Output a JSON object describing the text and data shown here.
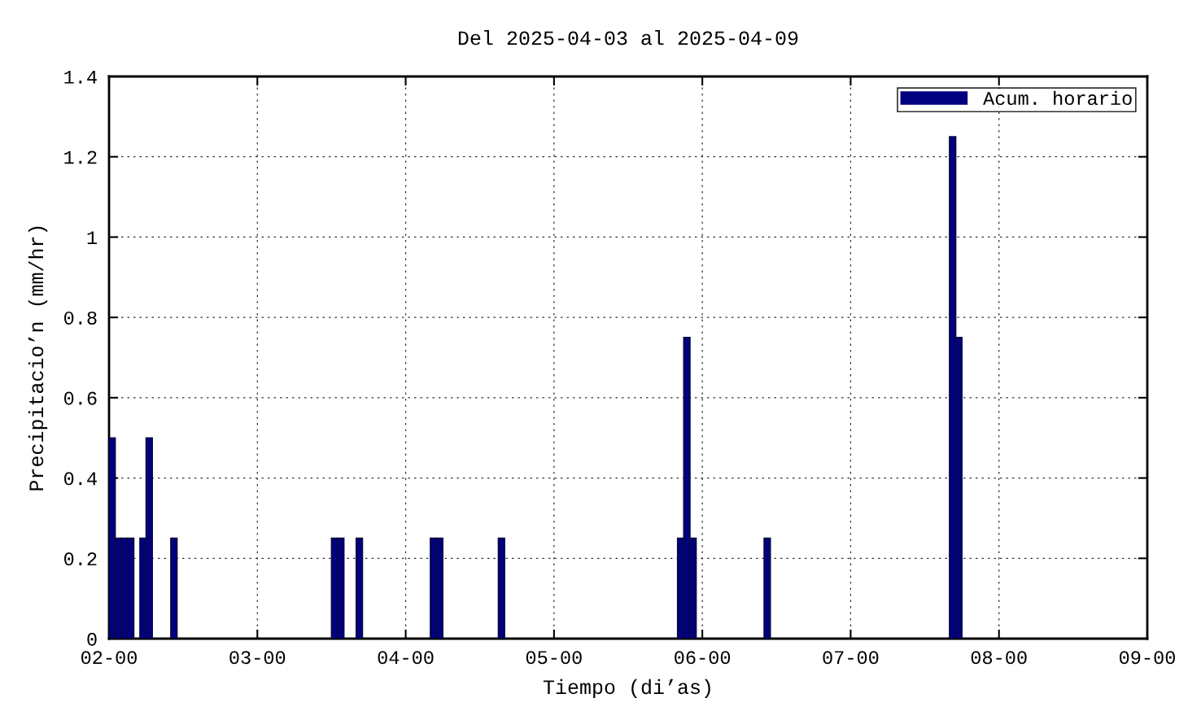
{
  "chart_data": {
    "type": "bar",
    "title": "Del 2025-04-03 al 2025-04-09",
    "xlabel": "Tiempo (di’as)",
    "ylabel": "Precipitacio’n (mm/hr)",
    "series": [
      {
        "name": "Acum. horario",
        "color": "#000080",
        "x": [
          "2025-04-02T00:30",
          "2025-04-02T01:30",
          "2025-04-02T02:30",
          "2025-04-02T03:30",
          "2025-04-02T05:30",
          "2025-04-02T06:30",
          "2025-04-02T10:30",
          "2025-04-03T12:30",
          "2025-04-03T13:30",
          "2025-04-03T16:30",
          "2025-04-04T04:30",
          "2025-04-04T05:30",
          "2025-04-04T15:30",
          "2025-04-05T20:30",
          "2025-04-05T21:30",
          "2025-04-05T22:30",
          "2025-04-06T10:30",
          "2025-04-07T16:30",
          "2025-04-07T17:30"
        ],
        "values": [
          0.5,
          0.25,
          0.25,
          0.25,
          0.25,
          0.5,
          0.25,
          0.25,
          0.25,
          0.25,
          0.25,
          0.25,
          0.25,
          0.25,
          0.75,
          0.25,
          0.25,
          1.25,
          0.75
        ]
      }
    ],
    "xlim": [
      "2025-04-02",
      "2025-04-09"
    ],
    "xticks": [
      {
        "value": "2025-04-02",
        "label": "02-00"
      },
      {
        "value": "2025-04-03",
        "label": "03-00"
      },
      {
        "value": "2025-04-04",
        "label": "04-00"
      },
      {
        "value": "2025-04-05",
        "label": "05-00"
      },
      {
        "value": "2025-04-06",
        "label": "06-00"
      },
      {
        "value": "2025-04-07",
        "label": "07-00"
      },
      {
        "value": "2025-04-08",
        "label": "08-00"
      },
      {
        "value": "2025-04-09",
        "label": "09-00"
      }
    ],
    "ylim": [
      0,
      1.4
    ],
    "yticks": [
      0,
      0.2,
      0.4,
      0.6,
      0.8,
      1,
      1.2,
      1.4
    ],
    "grid": true,
    "legend": "top right"
  }
}
